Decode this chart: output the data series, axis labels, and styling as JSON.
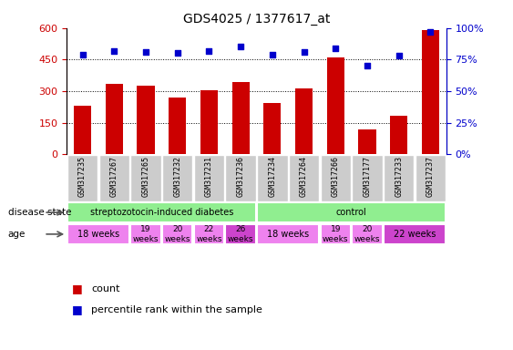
{
  "title": "GDS4025 / 1377617_at",
  "samples": [
    "GSM317235",
    "GSM317267",
    "GSM317265",
    "GSM317232",
    "GSM317231",
    "GSM317236",
    "GSM317234",
    "GSM317264",
    "GSM317266",
    "GSM317177",
    "GSM317233",
    "GSM317237"
  ],
  "counts": [
    230,
    335,
    325,
    270,
    305,
    345,
    245,
    315,
    460,
    120,
    185,
    590
  ],
  "percentiles": [
    79,
    82,
    81,
    80,
    82,
    85,
    79,
    81,
    84,
    70,
    78,
    97
  ],
  "bar_color": "#cc0000",
  "dot_color": "#0000cc",
  "ylim_left": [
    0,
    600
  ],
  "ylim_right": [
    0,
    100
  ],
  "yticks_left": [
    0,
    150,
    300,
    450,
    600
  ],
  "yticks_right": [
    0,
    25,
    50,
    75,
    100
  ],
  "ytick_labels_left": [
    "0",
    "150",
    "300",
    "450",
    "600"
  ],
  "ytick_labels_right": [
    "0%",
    "25%",
    "50%",
    "75%",
    "100%"
  ],
  "disease_state_groups": [
    {
      "label": "streptozotocin-induced diabetes",
      "start": 0,
      "end": 6,
      "color": "#90ee90"
    },
    {
      "label": "control",
      "start": 6,
      "end": 12,
      "color": "#90ee90"
    }
  ],
  "age_groups": [
    {
      "label": "18 weeks",
      "start": 0,
      "end": 2,
      "color": "#ee82ee",
      "fontsize": 7
    },
    {
      "label": "19\nweeks",
      "start": 2,
      "end": 3,
      "color": "#ee82ee",
      "fontsize": 6.5
    },
    {
      "label": "20\nweeks",
      "start": 3,
      "end": 4,
      "color": "#ee82ee",
      "fontsize": 6.5
    },
    {
      "label": "22\nweeks",
      "start": 4,
      "end": 5,
      "color": "#ee82ee",
      "fontsize": 6.5
    },
    {
      "label": "26\nweeks",
      "start": 5,
      "end": 6,
      "color": "#cc44cc",
      "fontsize": 6.5
    },
    {
      "label": "18 weeks",
      "start": 6,
      "end": 8,
      "color": "#ee82ee",
      "fontsize": 7
    },
    {
      "label": "19\nweeks",
      "start": 8,
      "end": 9,
      "color": "#ee82ee",
      "fontsize": 6.5
    },
    {
      "label": "20\nweeks",
      "start": 9,
      "end": 10,
      "color": "#ee82ee",
      "fontsize": 6.5
    },
    {
      "label": "22 weeks",
      "start": 10,
      "end": 12,
      "color": "#cc44cc",
      "fontsize": 7
    }
  ],
  "grid_color": "black",
  "tick_color_left": "#cc0000",
  "tick_color_right": "#0000cc",
  "sample_bg_color": "#cccccc",
  "disease_state_label": "disease state",
  "age_label": "age"
}
